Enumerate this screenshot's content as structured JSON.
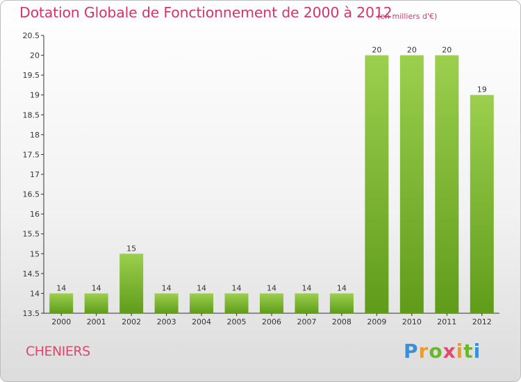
{
  "title": "Dotation Globale de Fonctionnement de 2000 à 2012",
  "subtitle": "(en milliers d'€)",
  "commune": "CHENIERS",
  "logo": "Proxiti",
  "colors": {
    "bar_top": "#9ccf4e",
    "bar_bottom": "#5f9c1a",
    "title": "#d6336c"
  },
  "chart_data": {
    "type": "bar",
    "title": "Dotation Globale de Fonctionnement de 2000 à 2012",
    "subtitle": "(en milliers d'€)",
    "categories": [
      "2000",
      "2001",
      "2002",
      "2003",
      "2004",
      "2005",
      "2006",
      "2007",
      "2008",
      "2009",
      "2010",
      "2011",
      "2012"
    ],
    "values": [
      14,
      14,
      15,
      14,
      14,
      14,
      14,
      14,
      14,
      20,
      20,
      20,
      19
    ],
    "data_labels": [
      "14",
      "14",
      "15",
      "14",
      "14",
      "14",
      "14",
      "14",
      "14",
      "20",
      "20",
      "20",
      "19"
    ],
    "ylim": [
      13.5,
      20.5
    ],
    "yticks": [
      13.5,
      14,
      14.5,
      15,
      15.5,
      16,
      16.5,
      17,
      17.5,
      18,
      18.5,
      19,
      19.5,
      20,
      20.5
    ],
    "ytick_labels": [
      "13.5",
      "14",
      "14.5",
      "15",
      "15.5",
      "16",
      "16.5",
      "17",
      "17.5",
      "18",
      "18.5",
      "19",
      "19.5",
      "20",
      "20.5"
    ],
    "grid": false,
    "legend": "none"
  }
}
